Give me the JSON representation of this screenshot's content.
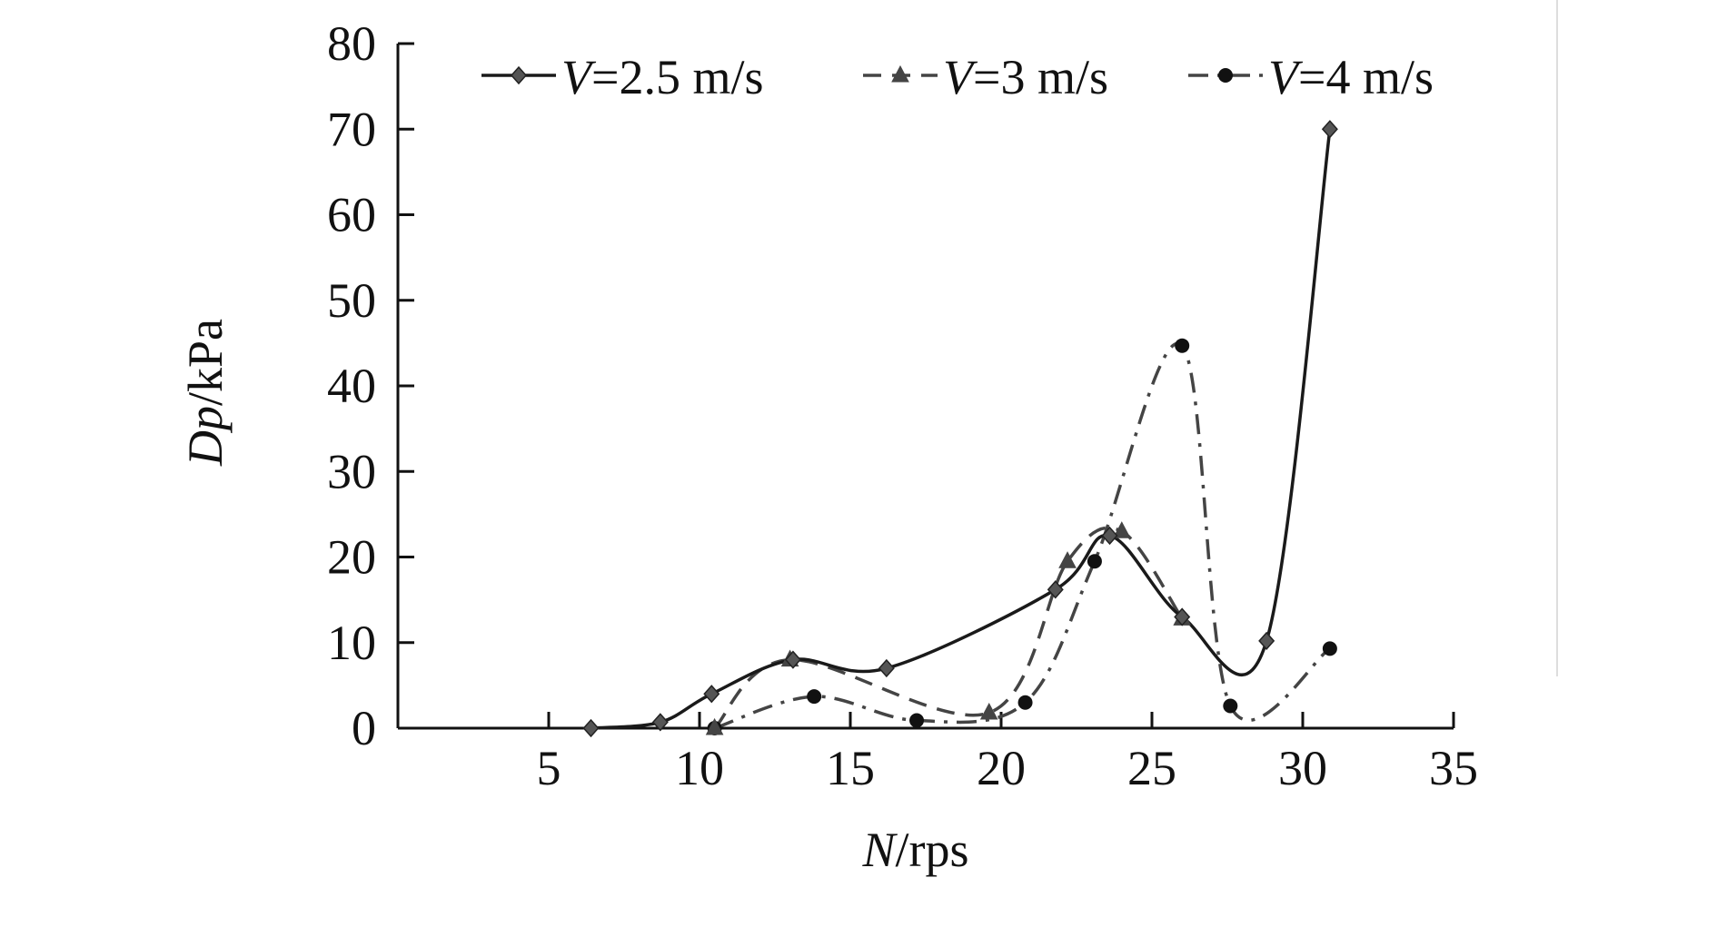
{
  "chart_data": {
    "type": "line",
    "title": "",
    "xlabel": {
      "italic": "N",
      "rest": "/rps"
    },
    "ylabel": {
      "italic": "Dp",
      "rest": "/kPa"
    },
    "xlim": [
      0,
      35
    ],
    "ylim": [
      0,
      80
    ],
    "xticks": [
      5,
      10,
      15,
      20,
      25,
      30,
      35
    ],
    "yticks": [
      0,
      10,
      20,
      30,
      40,
      50,
      60,
      70,
      80
    ],
    "grid": false,
    "legend_position": "top",
    "series": [
      {
        "name": {
          "italic": "V",
          "rest": "=2.5 m/s"
        },
        "marker": "diamond",
        "dash": "solid",
        "color": "#1a1a1a",
        "marker_color": "#555555",
        "x": [
          6.4,
          8.7,
          10.4,
          13.1,
          16.2,
          21.8,
          23.6,
          26.0,
          28.8,
          30.9
        ],
        "y": [
          0.0,
          0.7,
          4.0,
          8.0,
          7.0,
          16.2,
          22.5,
          13.0,
          10.2,
          70.0
        ]
      },
      {
        "name": {
          "italic": "V",
          "rest": "=3 m/s"
        },
        "marker": "triangle",
        "dash": "dash",
        "color": "#444444",
        "marker_color": "#444444",
        "x": [
          10.5,
          13.0,
          19.6,
          22.2,
          24.0,
          26.0
        ],
        "y": [
          0.0,
          8.0,
          1.8,
          19.5,
          23.0,
          12.8
        ]
      },
      {
        "name": {
          "italic": "V",
          "rest": "=4 m/s"
        },
        "marker": "circle",
        "dash": "dash-dot",
        "color": "#444444",
        "marker_color": "#111111",
        "x": [
          10.5,
          13.8,
          17.2,
          20.8,
          23.1,
          26.0,
          27.6,
          30.9
        ],
        "y": [
          0.0,
          3.7,
          0.9,
          3.0,
          19.5,
          44.7,
          2.6,
          9.3
        ]
      }
    ]
  }
}
